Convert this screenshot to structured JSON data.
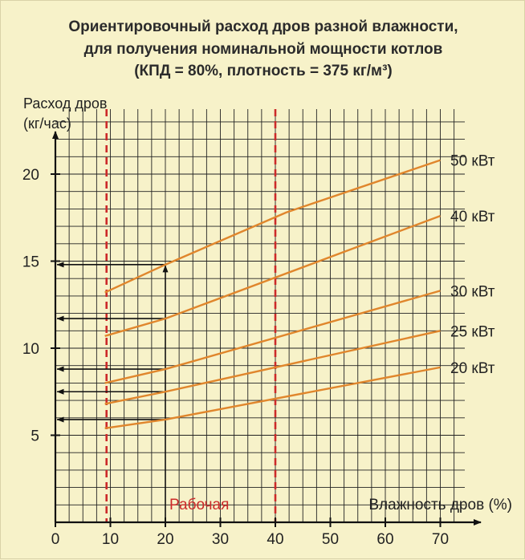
{
  "title": {
    "line1": "Ориентировочный расход дров разной влажности,",
    "line2": "для получения номинальной мощности котлов",
    "line3": "(КПД = 80%, плотность = 375 кг/м³)"
  },
  "colors": {
    "background": "#f7f2c9",
    "series": "#e0862c",
    "marker": "#cc2a2a",
    "grid": "#222222",
    "axis": "#111111"
  },
  "chart_data": {
    "type": "line",
    "title": "Ориентировочный расход дров разной влажности, для получения номинальной мощности котлов (КПД = 80%, плотность = 375 кг/м³)",
    "ylabel_line1": "Расход дров",
    "ylabel_line2": "(кг/час)",
    "xlabel": "Влажность дров (%)",
    "xlim": [
      0,
      75
    ],
    "ylim": [
      0,
      24
    ],
    "x_ticks": [
      "0",
      "10",
      "20",
      "30",
      "40",
      "50",
      "60",
      "70"
    ],
    "y_ticks": [
      "5",
      "10",
      "15",
      "20"
    ],
    "grid": true,
    "series": [
      {
        "name": "20 кВт",
        "points": [
          [
            9,
            5.4
          ],
          [
            20,
            5.9
          ],
          [
            70,
            8.9
          ]
        ]
      },
      {
        "name": "25 кВт",
        "points": [
          [
            9,
            6.8
          ],
          [
            20,
            7.5
          ],
          [
            70,
            11.0
          ]
        ]
      },
      {
        "name": "30 кВт",
        "points": [
          [
            9,
            8.0
          ],
          [
            20,
            8.8
          ],
          [
            70,
            13.3
          ]
        ]
      },
      {
        "name": "40 кВт",
        "points": [
          [
            9,
            10.7
          ],
          [
            20,
            11.7
          ],
          [
            70,
            17.6
          ]
        ]
      },
      {
        "name": "50 кВт",
        "points": [
          [
            9,
            13.2
          ],
          [
            20,
            14.8
          ],
          [
            42,
            17.8
          ],
          [
            70,
            20.8
          ]
        ]
      }
    ],
    "vertical_markers": [
      {
        "x": 9.3,
        "style": "dashed"
      },
      {
        "x": 40,
        "style": "dashed"
      }
    ],
    "marker_label": "Рабочая",
    "readout_x": 20,
    "readout_levels": [
      14.8,
      11.7,
      8.8,
      7.5,
      5.9
    ]
  }
}
